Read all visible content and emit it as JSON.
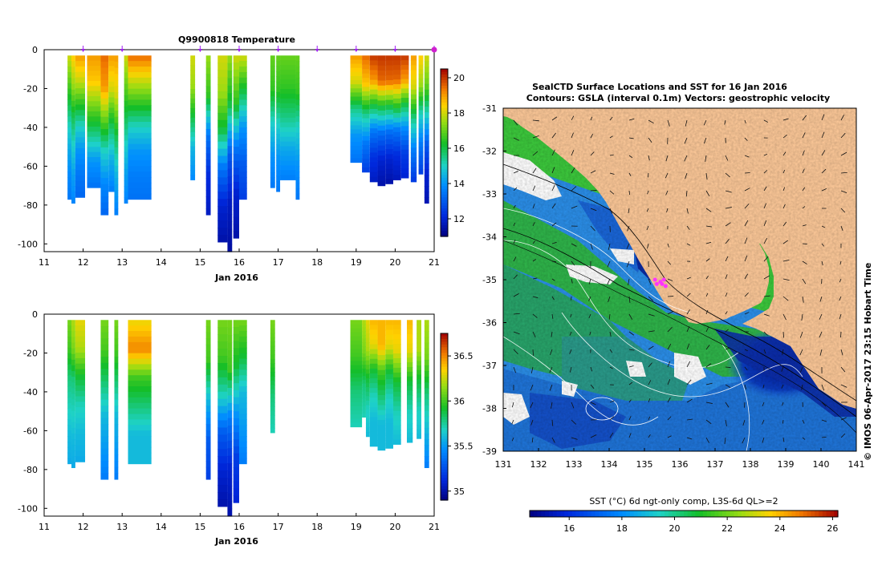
{
  "chart_data": [
    {
      "type": "heatmap",
      "title": "Q9900818  Temperature",
      "xlabel": "Jan 2016",
      "x_ticks": [
        "11",
        "12",
        "13",
        "14",
        "15",
        "16",
        "17",
        "18",
        "19",
        "20",
        "21"
      ],
      "y_ticks": [
        "0",
        "-20",
        "-40",
        "-60",
        "-80",
        "-100"
      ],
      "ylim": [
        -104,
        0
      ],
      "xlim": [
        11,
        21
      ],
      "colorbar": {
        "ticks": [
          "20",
          "18",
          "16",
          "14",
          "12"
        ],
        "range": [
          11,
          20.5
        ]
      },
      "marker_days": [
        12,
        13,
        15,
        16,
        17,
        18,
        19,
        20,
        21
      ],
      "profiles": [
        {
          "x": 11.6,
          "w": 0.1,
          "depth": 77,
          "t": [
            18,
            17,
            16,
            15,
            14.3,
            13.8,
            13.5
          ]
        },
        {
          "x": 11.7,
          "w": 0.1,
          "depth": 79,
          "t": [
            18.5,
            17.5,
            16,
            15,
            14.2,
            13.7
          ]
        },
        {
          "x": 11.8,
          "w": 0.25,
          "depth": 76,
          "t": [
            19,
            18,
            16.5,
            15,
            14,
            13.5,
            13.2
          ]
        },
        {
          "x": 12.1,
          "w": 0.35,
          "depth": 71,
          "t": [
            19,
            18.5,
            17,
            15.5,
            14,
            13.4
          ]
        },
        {
          "x": 12.45,
          "w": 0.2,
          "depth": 85,
          "t": [
            19.5,
            19,
            17,
            15,
            13.8,
            13.2
          ]
        },
        {
          "x": 12.65,
          "w": 0.15,
          "depth": 73,
          "t": [
            19,
            18,
            16,
            14.5,
            13.6
          ]
        },
        {
          "x": 12.8,
          "w": 0.1,
          "depth": 85,
          "t": [
            19,
            18,
            16,
            14.5,
            13.6
          ]
        },
        {
          "x": 13.05,
          "w": 0.1,
          "depth": 79,
          "t": [
            18,
            17,
            16,
            15,
            14.2,
            13.7
          ]
        },
        {
          "x": 13.15,
          "w": 0.6,
          "depth": 77,
          "t": [
            19.5,
            18,
            16.5,
            15,
            14,
            13.6,
            13.4
          ]
        },
        {
          "x": 14.75,
          "w": 0.12,
          "depth": 67,
          "t": [
            18,
            17.5,
            16,
            14.5,
            13.8
          ]
        },
        {
          "x": 15.15,
          "w": 0.12,
          "depth": 85,
          "t": [
            17.5,
            16.5,
            13.5,
            12.2,
            11.8
          ]
        },
        {
          "x": 15.45,
          "w": 0.25,
          "depth": 99,
          "t": [
            18,
            17.5,
            16,
            13.5,
            12,
            11.5
          ]
        },
        {
          "x": 15.7,
          "w": 0.12,
          "depth": 104,
          "t": [
            17.5,
            16,
            13,
            11.8,
            11.4
          ]
        },
        {
          "x": 15.85,
          "w": 0.15,
          "depth": 97,
          "t": [
            18,
            16.5,
            13.5,
            12,
            11.5
          ]
        },
        {
          "x": 16,
          "w": 0.2,
          "depth": 77,
          "t": [
            18,
            16,
            14,
            13,
            12.5
          ]
        },
        {
          "x": 16.8,
          "w": 0.12,
          "depth": 71,
          "t": [
            17,
            16.5,
            15,
            14,
            13.5
          ]
        },
        {
          "x": 16.95,
          "w": 0.1,
          "depth": 73,
          "t": [
            17,
            16.5,
            15,
            14,
            13.5
          ]
        },
        {
          "x": 17.05,
          "w": 0.4,
          "depth": 67,
          "t": [
            17,
            16.5,
            15.5,
            14.3,
            13.6
          ]
        },
        {
          "x": 17.45,
          "w": 0.1,
          "depth": 77,
          "t": [
            17,
            16.5,
            15,
            14,
            13.5
          ]
        },
        {
          "x": 18.85,
          "w": 0.3,
          "depth": 58,
          "t": [
            19,
            18,
            15.5,
            14,
            13.4
          ]
        },
        {
          "x": 19.15,
          "w": 0.2,
          "depth": 63,
          "t": [
            19.5,
            18.5,
            15.5,
            13.5,
            12.5
          ]
        },
        {
          "x": 19.35,
          "w": 0.2,
          "depth": 68,
          "t": [
            20,
            19,
            16,
            13.5,
            12.3,
            11.8
          ]
        },
        {
          "x": 19.55,
          "w": 0.2,
          "depth": 70,
          "t": [
            20,
            19.5,
            16,
            13.3,
            12,
            11.5
          ]
        },
        {
          "x": 19.75,
          "w": 0.2,
          "depth": 69,
          "t": [
            20,
            19.5,
            16,
            13.3,
            12,
            11.5
          ]
        },
        {
          "x": 19.95,
          "w": 0.2,
          "depth": 67,
          "t": [
            20,
            19.5,
            16.5,
            13.5,
            12.2,
            11.7
          ]
        },
        {
          "x": 20.15,
          "w": 0.2,
          "depth": 66,
          "t": [
            20,
            19,
            16,
            13.8,
            12.5,
            12
          ]
        },
        {
          "x": 20.4,
          "w": 0.15,
          "depth": 68,
          "t": [
            19,
            18,
            15.5,
            13.6,
            12.4
          ]
        },
        {
          "x": 20.6,
          "w": 0.12,
          "depth": 64,
          "t": [
            18.5,
            17.5,
            15,
            13.5,
            12.5
          ]
        },
        {
          "x": 20.75,
          "w": 0.12,
          "depth": 79,
          "t": [
            18,
            17,
            15,
            13,
            12,
            11.6
          ]
        }
      ]
    },
    {
      "type": "heatmap",
      "title": "",
      "xlabel": "Jan 2016",
      "x_ticks": [
        "11",
        "12",
        "13",
        "14",
        "15",
        "16",
        "17",
        "18",
        "19",
        "20",
        "21"
      ],
      "y_ticks": [
        "0",
        "-20",
        "-40",
        "-60",
        "-80",
        "-100"
      ],
      "ylim": [
        -104,
        0
      ],
      "xlim": [
        11,
        21
      ],
      "colorbar": {
        "ticks": [
          "36.5",
          "36",
          "35.5",
          "35"
        ],
        "range": [
          34.9,
          36.75
        ]
      },
      "profiles": [
        {
          "x": 11.6,
          "w": 0.1,
          "depth": 77,
          "s": [
            36.1,
            36,
            35.8,
            35.7,
            35.6,
            35.55
          ]
        },
        {
          "x": 11.7,
          "w": 0.1,
          "depth": 79,
          "s": [
            36.2,
            36.1,
            35.8,
            35.7,
            35.6,
            35.55
          ]
        },
        {
          "x": 11.8,
          "w": 0.25,
          "depth": 76,
          "s": [
            36.3,
            36.2,
            35.9,
            35.7,
            35.6,
            35.55
          ]
        },
        {
          "x": 12.45,
          "w": 0.2,
          "depth": 85,
          "s": [
            36.1,
            36,
            35.8,
            35.6,
            35.5,
            35.4
          ]
        },
        {
          "x": 12.8,
          "w": 0.1,
          "depth": 85,
          "s": [
            36.1,
            36,
            35.8,
            35.6,
            35.5,
            35.4
          ]
        },
        {
          "x": 13.15,
          "w": 0.6,
          "depth": 77,
          "s": [
            36.3,
            36.5,
            36,
            35.8,
            35.6,
            35.6
          ]
        },
        {
          "x": 15.15,
          "w": 0.12,
          "depth": 85,
          "s": [
            36.1,
            36.0,
            35.6,
            35.3,
            35.2
          ]
        },
        {
          "x": 15.45,
          "w": 0.25,
          "depth": 99,
          "s": [
            36.1,
            36,
            35.7,
            35.3,
            35.1,
            35
          ]
        },
        {
          "x": 15.7,
          "w": 0.12,
          "depth": 104,
          "s": [
            36.1,
            36,
            35.4,
            35.1,
            35
          ]
        },
        {
          "x": 15.85,
          "w": 0.15,
          "depth": 97,
          "s": [
            36.1,
            35.9,
            35.5,
            35.2,
            35.1
          ]
        },
        {
          "x": 16,
          "w": 0.2,
          "depth": 77,
          "s": [
            36.1,
            35.9,
            35.6,
            35.5,
            35.4
          ]
        },
        {
          "x": 16.8,
          "w": 0.12,
          "depth": 61,
          "s": [
            36.1,
            36,
            35.8,
            35.7
          ]
        },
        {
          "x": 18.85,
          "w": 0.3,
          "depth": 58,
          "s": [
            36.1,
            36,
            35.8,
            35.7
          ]
        },
        {
          "x": 19.15,
          "w": 0.1,
          "depth": 53,
          "s": [
            36.2,
            36.1,
            35.8,
            35.7
          ]
        },
        {
          "x": 19.25,
          "w": 0.1,
          "depth": 63,
          "s": [
            36.3,
            36.2,
            35.9,
            35.7,
            35.6
          ]
        },
        {
          "x": 19.35,
          "w": 0.2,
          "depth": 68,
          "s": [
            36.4,
            36.3,
            35.9,
            35.7,
            35.6,
            35.6
          ]
        },
        {
          "x": 19.55,
          "w": 0.2,
          "depth": 70,
          "s": [
            36.4,
            36.4,
            36,
            35.8,
            35.6,
            35.6
          ]
        },
        {
          "x": 19.75,
          "w": 0.2,
          "depth": 69,
          "s": [
            36.4,
            36.3,
            35.9,
            35.7,
            35.6,
            35.6
          ]
        },
        {
          "x": 19.95,
          "w": 0.2,
          "depth": 67,
          "s": [
            36.4,
            36.3,
            35.9,
            35.7,
            35.6
          ]
        },
        {
          "x": 20.3,
          "w": 0.15,
          "depth": 66,
          "s": [
            36.4,
            36.3,
            35.9,
            35.7,
            35.6
          ]
        },
        {
          "x": 20.55,
          "w": 0.12,
          "depth": 64,
          "s": [
            36.2,
            36.2,
            35.9,
            35.7,
            35.6
          ]
        },
        {
          "x": 20.75,
          "w": 0.12,
          "depth": 79,
          "s": [
            36.2,
            36.1,
            35.8,
            35.6,
            35.4
          ]
        }
      ]
    },
    {
      "type": "heatmap",
      "title": "SealCTD Surface Locations and SST for 16 Jan 2016",
      "subtitle": "Contours: GSLA (interval 0.1m) Vectors: geostrophic velocity",
      "x_ticks": [
        "131",
        "132",
        "133",
        "134",
        "135",
        "136",
        "137",
        "138",
        "139",
        "140",
        "141"
      ],
      "y_ticks": [
        "-31",
        "-32",
        "-33",
        "-34",
        "-35",
        "-36",
        "-37",
        "-38",
        "-39"
      ],
      "xlim": [
        131,
        141
      ],
      "ylim": [
        -39,
        -31
      ],
      "side_label": "©  IMOS 06-Apr-2017 23:15 Hobart Time",
      "colorbar": {
        "label": "SST (°C) 6d ngt-only comp, L3S-6d QL>=2",
        "ticks": [
          "16",
          "18",
          "20",
          "22",
          "24",
          "26"
        ],
        "range": [
          14.5,
          26.2
        ]
      },
      "seal_locations": [
        {
          "lon": 135.3,
          "lat": -35.0
        },
        {
          "lon": 135.45,
          "lat": -35.05
        },
        {
          "lon": 135.5,
          "lat": -35.1
        },
        {
          "lon": 135.6,
          "lat": -35.15
        },
        {
          "lon": 135.35,
          "lat": -35.1
        },
        {
          "lon": 135.55,
          "lat": -35.0
        }
      ]
    }
  ]
}
